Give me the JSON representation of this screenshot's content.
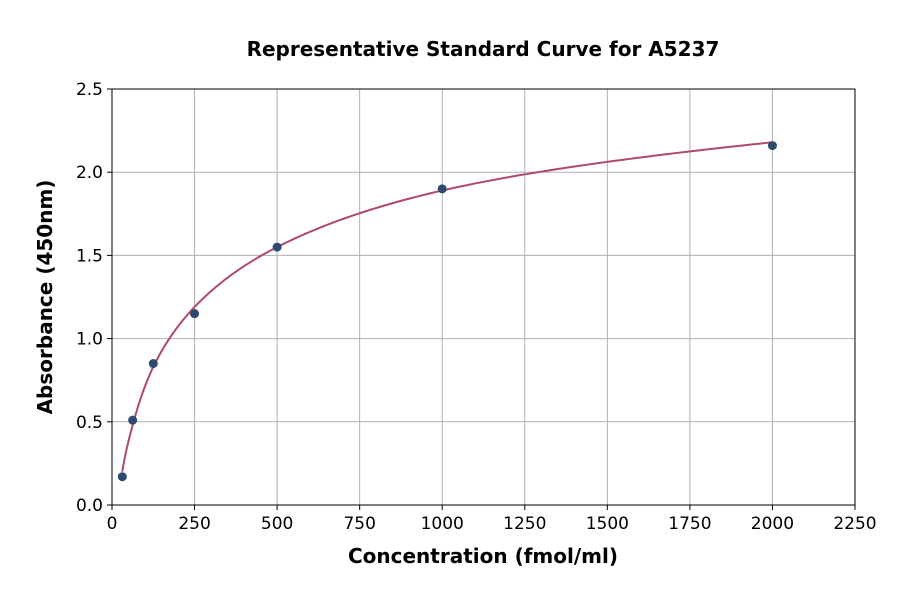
{
  "chart_data": {
    "type": "scatter",
    "title": "Representative Standard Curve for A5237",
    "xlabel": "Concentration (fmol/ml)",
    "ylabel": "Absorbance (450nm)",
    "xlim": [
      0,
      2250
    ],
    "ylim": [
      0,
      2.5
    ],
    "xticks": [
      0,
      250,
      500,
      750,
      1000,
      1250,
      1500,
      1750,
      2000,
      2250
    ],
    "yticks": [
      0.0,
      0.5,
      1.0,
      1.5,
      2.0,
      2.5
    ],
    "xtick_labels": [
      "0",
      "250",
      "500",
      "750",
      "1000",
      "1250",
      "1500",
      "1750",
      "2000",
      "2250"
    ],
    "ytick_labels": [
      "0.0",
      "0.5",
      "1.0",
      "1.5",
      "2.0",
      "2.5"
    ],
    "grid": true,
    "series": [
      {
        "points": [
          {
            "x": 31.25,
            "y": 0.17
          },
          {
            "x": 62.5,
            "y": 0.51
          },
          {
            "x": 125,
            "y": 0.85
          },
          {
            "x": 250,
            "y": 1.15
          },
          {
            "x": 500,
            "y": 1.55
          },
          {
            "x": 1000,
            "y": 1.9
          },
          {
            "x": 2000,
            "y": 2.16
          }
        ],
        "color": "#2e4a6e"
      }
    ],
    "fit_curve": {
      "color": "#b04a6a",
      "x_range": [
        31.25,
        2000
      ],
      "approx_points": [
        {
          "x": 31.25,
          "y": 0.2
        },
        {
          "x": 62.5,
          "y": 0.48
        },
        {
          "x": 125,
          "y": 0.83
        },
        {
          "x": 250,
          "y": 1.19
        },
        {
          "x": 500,
          "y": 1.55
        },
        {
          "x": 1000,
          "y": 1.89
        },
        {
          "x": 2000,
          "y": 2.18
        }
      ]
    }
  }
}
